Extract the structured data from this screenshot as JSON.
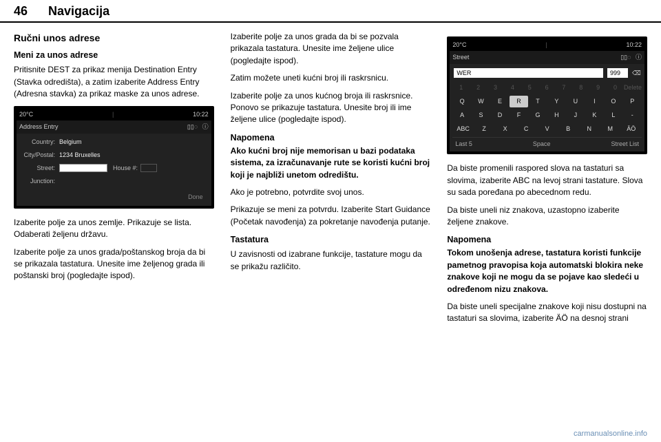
{
  "header": {
    "page_number": "46",
    "section_title": "Navigacija"
  },
  "col1": {
    "h3": "Ručni unos adrese",
    "h4": "Meni za unos adrese",
    "p1": "Pritisnite DEST za prikaz menija Destination Entry (Stavka odredišta), a zatim izaberite Address Entry (Adresna stavka) za prikaz maske za unos adrese.",
    "p2": "Izaberite polje za unos zemlje. Prikazuje se lista. Odaberati željenu državu.",
    "p3": "Izaberite polje za unos grada/poštanskog broja da bi se prikazala tastatura. Unesite ime željenog grada ili poštanski broj (pogledajte ispod)."
  },
  "screenshot1": {
    "temp": "20°C",
    "time": "10:22",
    "title": "Address Entry",
    "signal_icons": "▯▯◌",
    "info_icon": "ⓘ",
    "rows": {
      "country_label": "Country:",
      "country_value": "Belgium",
      "citypostal_label": "City/Postal:",
      "citypostal_value": "1234 Bruxelles",
      "street_label": "Street:",
      "house_label": "House #:",
      "junction_label": "Junction:"
    },
    "done": "Done"
  },
  "col2": {
    "p1": "Izaberite polje za unos grada da bi se pozvala prikazala tastatura. Unesite ime željene ulice (pogledajte ispod).",
    "p2": "Zatim možete uneti kućni broj ili raskrsnicu.",
    "p3": "Izaberite polje za unos kućnog broja ili raskrsnice. Ponovo se prikazuje tastatura. Unesite broj ili ime željene ulice (pogledajte ispod).",
    "note_title": "Napomena",
    "note_body": "Ako kućni broj nije memorisan u bazi podataka sistema, za izračunavanje rute se koristi kućni broj koji je najbliži unetom odredištu.",
    "p4": "Ako je potrebno, potvrdite svoj unos.",
    "p5": "Prikazuje se meni za potvrdu. Izaberite Start Guidance (Početak navođenja) za pokretanje navođenja putanje.",
    "h4": "Tastatura",
    "p6": "U zavisnosti od izabrane funkcije, tastature mogu da se prikažu različito."
  },
  "screenshot2": {
    "temp": "20°C",
    "time": "10:22",
    "title": "Street",
    "signal_icons": "▯▯◌",
    "info_icon": "ⓘ",
    "text_value": "WER",
    "num_value": "999",
    "delete_icon": "⌫",
    "row_num": [
      "1",
      "2",
      "3",
      "4",
      "5",
      "6",
      "7",
      "8",
      "9",
      "0",
      "Delete"
    ],
    "row1": [
      "Q",
      "W",
      "E",
      "R",
      "T",
      "Y",
      "U",
      "I",
      "O",
      "P"
    ],
    "row2": [
      "A",
      "S",
      "D",
      "F",
      "G",
      "H",
      "J",
      "K",
      "L",
      "-"
    ],
    "row3": [
      "ABC",
      "Z",
      "X",
      "C",
      "V",
      "B",
      "N",
      "M",
      "ÄÖ"
    ],
    "highlighted_key": "R",
    "bottom": {
      "left": "Last 5",
      "center": "Space",
      "right": "Street List"
    }
  },
  "col3": {
    "p1": "Da biste promenili raspored slova na tastaturi sa slovima, izaberite ABC na levoj strani tastature. Slova su sada poređana po abecednom redu.",
    "p2": "Da biste uneli niz znakova, uzastopno izaberite željene znakove.",
    "note_title": "Napomena",
    "note_body": "Tokom unošenja adrese, tastatura koristi funkcije pametnog pravopisa koja automatski blokira neke znakove koji ne mogu da se pojave kao sledeći u određenom nizu znakova.",
    "p3": "Da biste uneli specijalne znakove koji nisu dostupni na tastaturi sa slovima, izaberite ÄÖ na desnoj strani"
  },
  "footer": {
    "link": "carmanualsonline.info"
  }
}
